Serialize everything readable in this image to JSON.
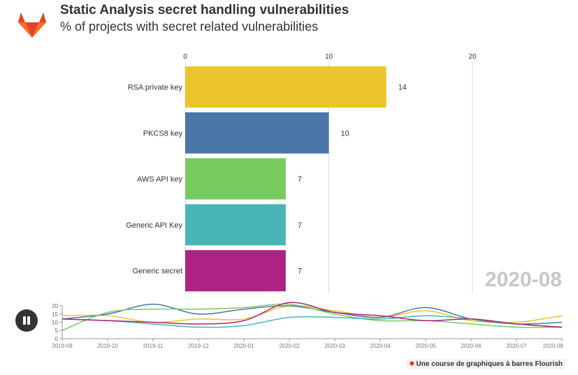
{
  "header": {
    "title": "Static Analysis secret handling vulnerabilities",
    "subtitle": "% of projects with secret related vulnerabilities"
  },
  "logo": {
    "icon": "gitlab-fox-icon"
  },
  "current_period": "2020-08",
  "controls": {
    "pause_icon": "pause-icon"
  },
  "credit": {
    "text": "Une course de graphiques à barres Flourish"
  },
  "chart_data": [
    {
      "type": "bar",
      "orientation": "horizontal",
      "title": "",
      "categories": [
        "RSA private key",
        "PKCS8 key",
        "AWS API key",
        "Generic API Key",
        "Generic secret"
      ],
      "values": [
        14,
        10,
        7,
        7,
        7
      ],
      "value_labels": [
        "14",
        "10",
        "7",
        "7",
        "7"
      ],
      "colors": [
        "#ebc52b",
        "#4a76a8",
        "#77cc60",
        "#48b6b7",
        "#ad2383"
      ],
      "xlim": [
        0,
        20
      ],
      "xticks": [
        "0",
        "10",
        "20"
      ],
      "grid": true
    },
    {
      "type": "line",
      "title": "",
      "x": [
        "2019-09",
        "2019-10",
        "2019-11",
        "2019-12",
        "2020-01",
        "2020-02",
        "2020-03",
        "2020-04",
        "2020-05",
        "2020-06",
        "2020-07",
        "2020-08"
      ],
      "ylim": [
        0,
        20
      ],
      "yticks": [
        "0",
        "5",
        "10",
        "15",
        "20"
      ],
      "series": [
        {
          "color": "#ebc52b",
          "values": [
            14,
            14,
            10,
            12,
            12,
            20,
            17,
            13,
            17,
            11,
            10,
            14
          ]
        },
        {
          "color": "#4a76a8",
          "values": [
            12,
            15,
            21,
            15,
            18,
            20,
            16,
            13,
            19,
            12,
            9,
            10
          ]
        },
        {
          "color": "#77cc60",
          "values": [
            5,
            16,
            18,
            18,
            19,
            21,
            15,
            11,
            11,
            9,
            7,
            7
          ]
        },
        {
          "color": "#48b6b7",
          "values": [
            12,
            11,
            9,
            7,
            8,
            13,
            13,
            12,
            14,
            12,
            9,
            7
          ]
        },
        {
          "color": "#ad2383",
          "values": [
            12,
            11,
            10,
            9,
            11,
            22,
            16,
            14,
            11,
            12,
            9,
            7
          ]
        }
      ]
    }
  ]
}
